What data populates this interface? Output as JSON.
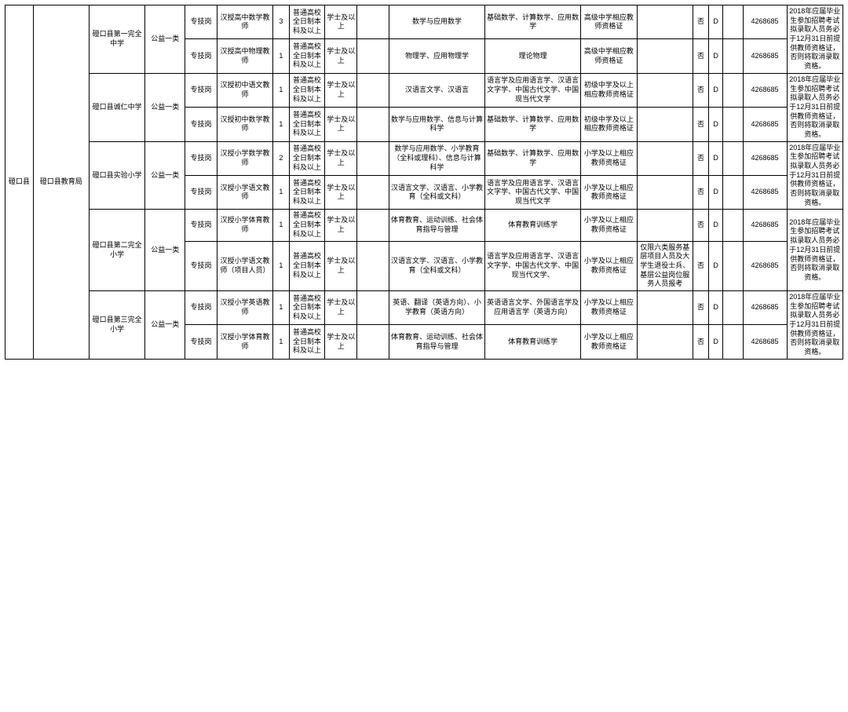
{
  "county": "磴口县",
  "bureau": "磴口县教育局",
  "schools": [
    {
      "name": "磴口县第一完全中学",
      "welfare": "公益一类",
      "rows": [
        {
          "post": "专技岗",
          "position": "汉授高中数学教师",
          "qty": "3",
          "edu": "普通高校全日制本科及以上",
          "degree": "学士及以上",
          "major": "数学与应用数学",
          "dir": "基础数学、计算数学、应用数学",
          "cert": "高级中学相应教师资格证",
          "limit": "",
          "no": "否",
          "d": "D",
          "phone": "4268685"
        },
        {
          "post": "专技岗",
          "position": "汉授高中物理教师",
          "qty": "1",
          "edu": "普通高校全日制本科及以上",
          "degree": "学士及以上",
          "major": "物理学、应用物理学",
          "dir": "理论物理",
          "cert": "高级中学相应教师资格证",
          "limit": "",
          "no": "否",
          "d": "D",
          "phone": "4268685"
        }
      ],
      "remark": "2018年应届毕业生参加招聘考试拟录取人员务必于12月31日前提供教师资格证，否则将取消录取资格。"
    },
    {
      "name": "磴口县诚仁中学",
      "welfare": "公益一类",
      "rows": [
        {
          "post": "专技岗",
          "position": "汉授初中语文教师",
          "qty": "1",
          "edu": "普通高校全日制本科及以上",
          "degree": "学士及以上",
          "major": "汉语言文学、汉语言",
          "dir": "语言学及应用语言学、汉语言文字学、中国古代文学、中国现当代文学",
          "cert": "初级中学及以上相应教师资格证",
          "limit": "",
          "no": "否",
          "d": "D",
          "phone": "4268685"
        },
        {
          "post": "专技岗",
          "position": "汉授初中数学教师",
          "qty": "1",
          "edu": "普通高校全日制本科及以上",
          "degree": "学士及以上",
          "major": "数学与应用数学、信息与计算科学",
          "dir": "基础数学、计算数学、应用数学",
          "cert": "初级中学及以上相应教师资格证",
          "limit": "",
          "no": "否",
          "d": "D",
          "phone": "4268685"
        }
      ],
      "remark": "2018年应届毕业生参加招聘考试拟录取人员务必于12月31日前提供教师资格证，否则将取消录取资格。"
    },
    {
      "name": "磴口县实验小学",
      "welfare": "公益一类",
      "rows": [
        {
          "post": "专技岗",
          "position": "汉授小学数学教师",
          "qty": "2",
          "edu": "普通高校全日制本科及以上",
          "degree": "学士及以上",
          "major": "数学与应用数学、小学教育（全科或理科）、信息与计算科学",
          "dir": "基础数学、计算数学、应用数学",
          "cert": "小学及以上相应教师资格证",
          "limit": "",
          "no": "否",
          "d": "D",
          "phone": "4268685"
        },
        {
          "post": "专技岗",
          "position": "汉授小学语文教师",
          "qty": "1",
          "edu": "普通高校全日制本科及以上",
          "degree": "学士及以上",
          "major": "汉语言文学、汉语言、小学教育（全科或文科）",
          "dir": "语言学及应用语言学、汉语言文字学、中国古代文学、中国现当代文学",
          "cert": "小学及以上相应教师资格证",
          "limit": "",
          "no": "否",
          "d": "D",
          "phone": "4268685"
        }
      ],
      "remark": "2018年应届毕业生参加招聘考试拟录取人员务必于12月31日前提供教师资格证，否则将取消录取资格。"
    },
    {
      "name": "磴口县第二完全小学",
      "welfare": "公益一类",
      "rows": [
        {
          "post": "专技岗",
          "position": "汉授小学体育教师",
          "qty": "1",
          "edu": "普通高校全日制本科及以上",
          "degree": "学士及以上",
          "major": "体育教育、运动训练、社会体育指导与管理",
          "dir": "体育教育训练学",
          "cert": "小学及以上相应教师资格证",
          "limit": "",
          "no": "否",
          "d": "D",
          "phone": "4268685"
        },
        {
          "post": "专技岗",
          "position": "汉授小学语文教师（项目人员）",
          "qty": "1",
          "edu": "普通高校全日制本科及以上",
          "degree": "学士及以上",
          "major": "汉语言文学、汉语言、小学教育（全科或文科）",
          "dir": "语言学及应用语言学、汉语言文字学、中国古代文学、中国现当代文学、",
          "cert": "小学及以上相应教师资格证",
          "limit": "仅限六类服务基层项目人员及大学生退役士兵、基层公益岗位服务人员报考",
          "no": "否",
          "d": "D",
          "phone": "4268685"
        }
      ],
      "remark": "2018年应届毕业生参加招聘考试拟录取人员务必于12月31日前提供教师资格证，否则将取消录取资格。"
    },
    {
      "name": "磴口县第三完全小学",
      "welfare": "公益一类",
      "rows": [
        {
          "post": "专技岗",
          "position": "汉授小学英语教师",
          "qty": "1",
          "edu": "普通高校全日制本科及以上",
          "degree": "学士及以上",
          "major": "英语、翻译（英语方向）、小学教育（英语方向）",
          "dir": "英语语言文学、外国语言学及应用语言学（英语方向）",
          "cert": "小学及以上相应教师资格证",
          "limit": "",
          "no": "否",
          "d": "D",
          "phone": "4268685"
        },
        {
          "post": "专技岗",
          "position": "汉授小学体育教师",
          "qty": "1",
          "edu": "普通高校全日制本科及以上",
          "degree": "学士及以上",
          "major": "体育教育、运动训练、社会体育指导与管理",
          "dir": "体育教育训练学",
          "cert": "小学及以上相应教师资格证",
          "limit": "",
          "no": "否",
          "d": "D",
          "phone": "4268685"
        }
      ],
      "remark": "2018年应届毕业生参加招聘考试拟录取人员务必于12月31日前提供教师资格证，否则将取消录取资格。"
    }
  ]
}
